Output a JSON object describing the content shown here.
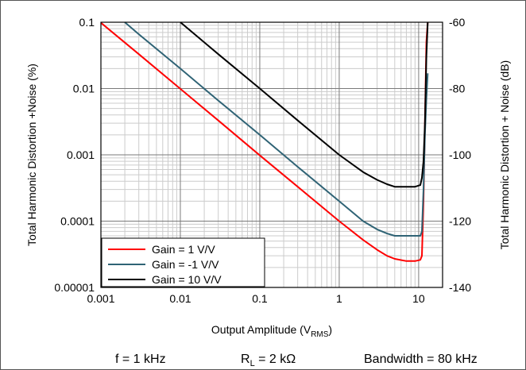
{
  "chart_data": {
    "type": "line",
    "x_scale": "log",
    "y_scale": "log",
    "xlabel": {
      "main": "Output Amplitude (V",
      "sub": "RMS",
      "end": ")"
    },
    "ylabel_left": "Total Harmonic Distortion +Noise (%)",
    "ylabel_right": "Total Harmonic Distortion + Noise (dB)",
    "xlim": [
      0.001,
      20
    ],
    "ylim": [
      1e-05,
      0.1
    ],
    "y2lim": [
      -140,
      -60
    ],
    "x_ticks": [
      "0.001",
      "0.01",
      "0.1",
      "1",
      "10"
    ],
    "y_ticks": [
      "0.00001",
      "0.0001",
      "0.001",
      "0.01",
      "0.1"
    ],
    "y2_ticks": [
      "-140",
      "-120",
      "-100",
      "-80",
      "-60"
    ],
    "grid": true,
    "legend_position": "bottom-left",
    "series": [
      {
        "name": "Gain = 1 V/V",
        "color": "#ff0000",
        "x": [
          0.001,
          0.003,
          0.01,
          0.03,
          0.1,
          0.3,
          1,
          2,
          3,
          4,
          5,
          7,
          9,
          10.5,
          11,
          11.5,
          12,
          12.5,
          13
        ],
        "y": [
          0.098,
          0.033,
          0.0099,
          0.0033,
          0.00098,
          0.00033,
          0.0001,
          5.2e-05,
          3.7e-05,
          3e-05,
          2.7e-05,
          2.5e-05,
          2.5e-05,
          2.6e-05,
          3e-05,
          0.0002,
          0.003,
          0.05,
          0.1
        ]
      },
      {
        "name": "Gain = -1 V/V",
        "color": "#2f6375",
        "x": [
          0.002,
          0.003,
          0.01,
          0.03,
          0.1,
          0.3,
          1,
          2,
          3,
          4,
          5,
          7,
          9,
          10.5,
          11,
          11.5,
          12,
          12.5,
          13
        ],
        "y": [
          0.1,
          0.066,
          0.02,
          0.0066,
          0.002,
          0.00066,
          0.0002,
          0.0001,
          7.5e-05,
          6.5e-05,
          6e-05,
          6e-05,
          6e-05,
          6e-05,
          7e-05,
          0.0003,
          0.002,
          0.007,
          0.017
        ]
      },
      {
        "name": "Gain = 10 V/V",
        "color": "#000000",
        "x": [
          0.01,
          0.03,
          0.1,
          0.3,
          1,
          2,
          3,
          4,
          5,
          7,
          9,
          10.5,
          11,
          11.5,
          12,
          12.5,
          13
        ],
        "y": [
          0.1,
          0.033,
          0.01,
          0.0033,
          0.001,
          0.00055,
          0.00042,
          0.00036,
          0.00033,
          0.00033,
          0.00033,
          0.00035,
          0.00045,
          0.0008,
          0.003,
          0.03,
          0.1
        ]
      }
    ]
  },
  "conditions": {
    "frequency": {
      "main": "f = 1 kHz"
    },
    "load": {
      "main": "R",
      "sub": "L",
      "end": " = 2 kΩ"
    },
    "bandwidth": {
      "main": "Bandwidth = 80 kHz"
    }
  }
}
